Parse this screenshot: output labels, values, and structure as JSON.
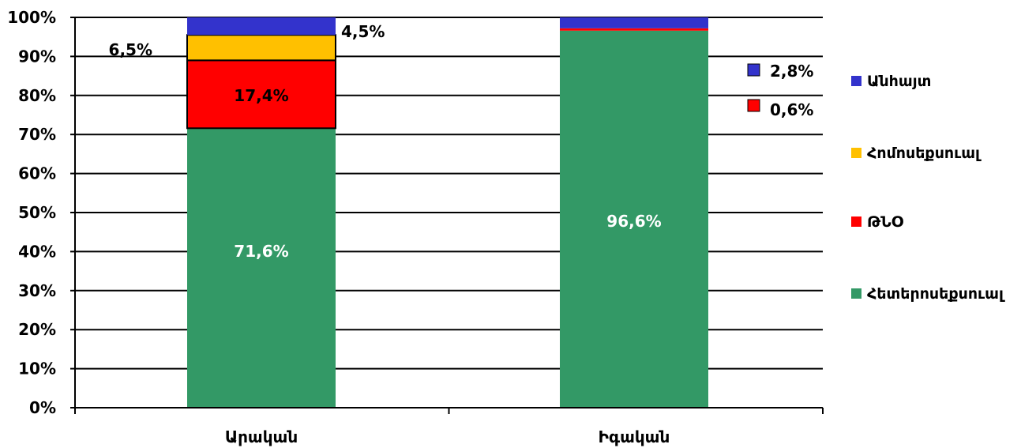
{
  "chart_data": {
    "type": "bar",
    "stacked": true,
    "categories": [
      "Արական",
      "Իգական"
    ],
    "series": [
      {
        "name": "Հետերոսեքսուալ",
        "color": "#339966",
        "values": [
          71.6,
          96.6
        ]
      },
      {
        "name": "ԹՆՕ",
        "color": "#ff0000",
        "values": [
          17.4,
          0.6
        ]
      },
      {
        "name": "Հոմոսեքսուալ",
        "color": "#ffc000",
        "values": [
          6.5,
          0
        ]
      },
      {
        "name": "Անհայտ",
        "color": "#3333cc",
        "values": [
          4.5,
          2.8
        ]
      }
    ],
    "yticks": [
      "0%",
      "10%",
      "20%",
      "30%",
      "40%",
      "50%",
      "60%",
      "70%",
      "80%",
      "90%",
      "100%"
    ],
    "ylim": [
      0,
      100
    ],
    "grid": true,
    "legend_position": "right",
    "data_labels": [
      {
        "text": "71,6%",
        "category": 0,
        "series": 0,
        "color": "#ffffff"
      },
      {
        "text": "17,4%",
        "category": 0,
        "series": 1,
        "color": "#000000"
      },
      {
        "text": "6,5%",
        "category": 0,
        "series": 2,
        "color": "#000000"
      },
      {
        "text": "4,5%",
        "category": 0,
        "series": 3,
        "color": "#000000"
      },
      {
        "text": "96,6%",
        "category": 1,
        "series": 0,
        "color": "#ffffff"
      },
      {
        "text": "0,6%",
        "category": 1,
        "series": 1,
        "color": "#000000"
      },
      {
        "text": "2,8%",
        "category": 1,
        "series": 3,
        "color": "#000000"
      }
    ]
  }
}
